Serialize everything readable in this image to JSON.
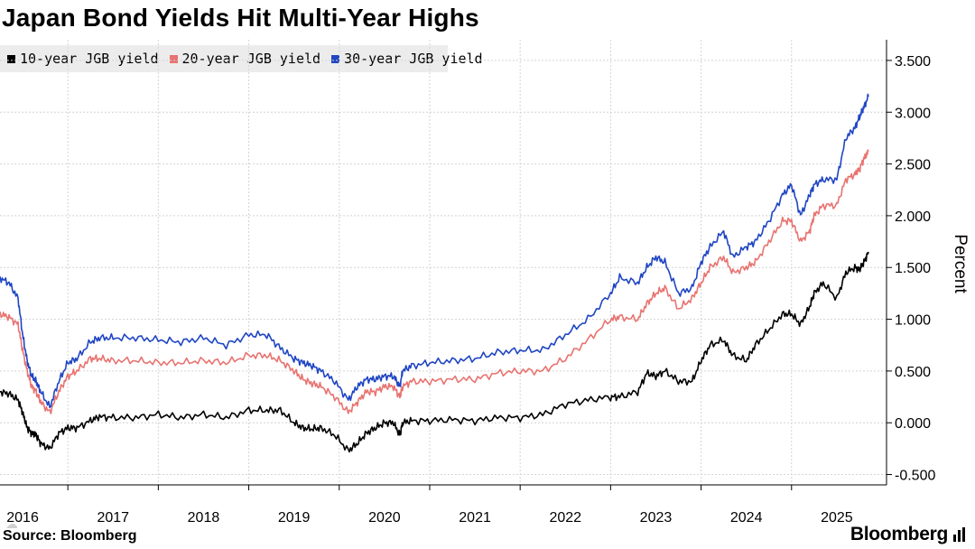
{
  "chart_data": {
    "type": "line",
    "title": "Japan Bond Yields Hit Multi-Year Highs",
    "ylabel": "Percent",
    "xlabel": "",
    "ylim": [
      -0.6,
      3.7
    ],
    "xlim": [
      2015.75,
      2025.55
    ],
    "yticks": [
      -0.5,
      0,
      0.5,
      1,
      1.5,
      2,
      2.5,
      3,
      3.5
    ],
    "ytick_labels": [
      "-0.500",
      "0.000",
      "0.500",
      "1.000",
      "1.500",
      "2.000",
      "2.500",
      "3.000",
      "3.500"
    ],
    "xtick_labels": [
      "2016",
      "2017",
      "2018",
      "2019",
      "2020",
      "2021",
      "2022",
      "2023",
      "2024",
      "2025"
    ],
    "xtick_values": [
      2016.0,
      2017.0,
      2018.0,
      2019.0,
      2020.0,
      2021.0,
      2022.0,
      2023.0,
      2024.0,
      2025.0
    ],
    "legend_position": "top-left",
    "grid": true,
    "series": [
      {
        "name": "10-year JGB yield",
        "color": "#000000",
        "x": [
          2015.75,
          2015.85,
          2015.95,
          2016.0,
          2016.05,
          2016.1,
          2016.15,
          2016.2,
          2016.3,
          2016.4,
          2016.5,
          2016.6,
          2016.75,
          2016.85,
          2017.0,
          2017.25,
          2017.5,
          2017.75,
          2018.0,
          2018.25,
          2018.5,
          2018.7,
          2018.85,
          2019.0,
          2019.1,
          2019.2,
          2019.3,
          2019.45,
          2019.6,
          2019.7,
          2019.8,
          2019.9,
          2020.0,
          2020.1,
          2020.17,
          2020.2,
          2020.3,
          2020.5,
          2020.75,
          2021.0,
          2021.25,
          2021.5,
          2021.75,
          2022.0,
          2022.25,
          2022.5,
          2022.6,
          2022.8,
          2022.9,
          2023.0,
          2023.1,
          2023.25,
          2023.4,
          2023.5,
          2023.6,
          2023.75,
          2023.85,
          2024.0,
          2024.1,
          2024.25,
          2024.4,
          2024.5,
          2024.6,
          2024.7,
          2024.75,
          2024.85,
          2025.0,
          2025.1,
          2025.2,
          2025.25,
          2025.3,
          2025.35
        ],
        "values": [
          0.3,
          0.28,
          0.22,
          0.1,
          -0.05,
          -0.1,
          -0.12,
          -0.2,
          -0.25,
          -0.1,
          -0.05,
          -0.05,
          0.02,
          0.06,
          0.05,
          0.05,
          0.08,
          0.05,
          0.08,
          0.05,
          0.12,
          0.12,
          0.12,
          0.0,
          -0.05,
          -0.06,
          -0.05,
          -0.12,
          -0.27,
          -0.2,
          -0.1,
          -0.05,
          0.0,
          0.0,
          -0.12,
          0.0,
          0.02,
          0.02,
          0.03,
          0.02,
          0.05,
          0.05,
          0.08,
          0.18,
          0.22,
          0.25,
          0.25,
          0.3,
          0.48,
          0.45,
          0.5,
          0.4,
          0.4,
          0.6,
          0.75,
          0.8,
          0.65,
          0.6,
          0.75,
          0.9,
          1.05,
          1.05,
          0.95,
          1.12,
          1.25,
          1.35,
          1.2,
          1.45,
          1.5,
          1.48,
          1.55,
          1.65
        ]
      },
      {
        "name": "20-year JGB yield",
        "color": "#e87370",
        "x": [
          2015.75,
          2015.85,
          2015.95,
          2016.0,
          2016.05,
          2016.1,
          2016.15,
          2016.2,
          2016.3,
          2016.4,
          2016.5,
          2016.6,
          2016.75,
          2016.85,
          2017.0,
          2017.25,
          2017.5,
          2017.75,
          2018.0,
          2018.25,
          2018.5,
          2018.7,
          2018.85,
          2019.0,
          2019.1,
          2019.2,
          2019.3,
          2019.45,
          2019.6,
          2019.7,
          2019.8,
          2019.9,
          2020.0,
          2020.1,
          2020.17,
          2020.2,
          2020.3,
          2020.5,
          2020.75,
          2021.0,
          2021.25,
          2021.5,
          2021.75,
          2022.0,
          2022.25,
          2022.5,
          2022.6,
          2022.8,
          2022.9,
          2023.0,
          2023.1,
          2023.25,
          2023.4,
          2023.5,
          2023.6,
          2023.75,
          2023.85,
          2024.0,
          2024.1,
          2024.25,
          2024.4,
          2024.5,
          2024.6,
          2024.7,
          2024.75,
          2024.85,
          2025.0,
          2025.1,
          2025.2,
          2025.25,
          2025.3,
          2025.35
        ],
        "values": [
          1.05,
          1.02,
          0.95,
          0.7,
          0.5,
          0.35,
          0.3,
          0.2,
          0.1,
          0.3,
          0.45,
          0.5,
          0.62,
          0.62,
          0.6,
          0.6,
          0.58,
          0.58,
          0.6,
          0.58,
          0.65,
          0.65,
          0.6,
          0.5,
          0.42,
          0.38,
          0.35,
          0.25,
          0.1,
          0.2,
          0.3,
          0.3,
          0.35,
          0.35,
          0.25,
          0.35,
          0.4,
          0.4,
          0.42,
          0.42,
          0.48,
          0.5,
          0.5,
          0.62,
          0.8,
          1.0,
          1.02,
          1.0,
          1.15,
          1.25,
          1.3,
          1.1,
          1.2,
          1.35,
          1.5,
          1.6,
          1.45,
          1.5,
          1.55,
          1.75,
          1.95,
          1.95,
          1.75,
          1.85,
          2.0,
          2.1,
          2.1,
          2.35,
          2.4,
          2.45,
          2.55,
          2.62
        ]
      },
      {
        "name": "30-year JGB yield",
        "color": "#1f45c3",
        "x": [
          2015.75,
          2015.85,
          2015.95,
          2016.0,
          2016.05,
          2016.1,
          2016.15,
          2016.2,
          2016.3,
          2016.4,
          2016.5,
          2016.6,
          2016.75,
          2016.85,
          2017.0,
          2017.25,
          2017.5,
          2017.75,
          2018.0,
          2018.25,
          2018.5,
          2018.7,
          2018.85,
          2019.0,
          2019.1,
          2019.2,
          2019.3,
          2019.45,
          2019.6,
          2019.7,
          2019.8,
          2019.9,
          2020.0,
          2020.1,
          2020.17,
          2020.2,
          2020.3,
          2020.5,
          2020.75,
          2021.0,
          2021.25,
          2021.5,
          2021.75,
          2022.0,
          2022.25,
          2022.5,
          2022.6,
          2022.8,
          2022.9,
          2023.0,
          2023.1,
          2023.25,
          2023.4,
          2023.5,
          2023.6,
          2023.75,
          2023.85,
          2024.0,
          2024.1,
          2024.25,
          2024.4,
          2024.5,
          2024.6,
          2024.7,
          2024.75,
          2024.85,
          2025.0,
          2025.1,
          2025.2,
          2025.25,
          2025.3,
          2025.35
        ],
        "values": [
          1.4,
          1.35,
          1.2,
          0.85,
          0.6,
          0.45,
          0.4,
          0.3,
          0.15,
          0.4,
          0.58,
          0.62,
          0.78,
          0.82,
          0.82,
          0.82,
          0.8,
          0.78,
          0.82,
          0.75,
          0.85,
          0.85,
          0.72,
          0.62,
          0.58,
          0.55,
          0.5,
          0.4,
          0.22,
          0.35,
          0.42,
          0.42,
          0.45,
          0.45,
          0.35,
          0.5,
          0.55,
          0.58,
          0.6,
          0.62,
          0.68,
          0.7,
          0.7,
          0.85,
          1.0,
          1.25,
          1.4,
          1.35,
          1.5,
          1.6,
          1.55,
          1.25,
          1.3,
          1.55,
          1.7,
          1.85,
          1.6,
          1.7,
          1.75,
          1.95,
          2.2,
          2.3,
          2.0,
          2.2,
          2.3,
          2.35,
          2.35,
          2.75,
          2.85,
          2.95,
          3.05,
          3.15
        ]
      }
    ]
  }
}
